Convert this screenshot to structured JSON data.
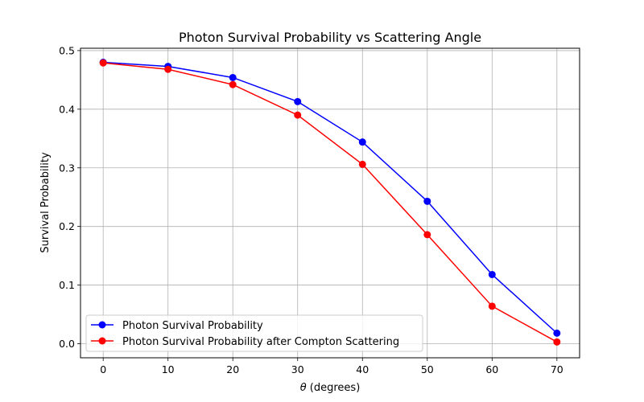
{
  "chart_data": {
    "type": "line",
    "title": "Photon Survival Probability vs Scattering Angle",
    "xlabel_prefix": "θ",
    "xlabel_suffix": " (degrees)",
    "ylabel": "Survival Probability",
    "x": [
      0,
      10,
      20,
      30,
      40,
      50,
      60,
      70
    ],
    "xlim": [
      -3.5,
      73.5
    ],
    "ylim": [
      -0.024,
      0.504
    ],
    "xticks": [
      0,
      10,
      20,
      30,
      40,
      50,
      60,
      70
    ],
    "yticks": [
      0.0,
      0.1,
      0.2,
      0.3,
      0.4,
      0.5
    ],
    "ytick_labels": [
      "0.0",
      "0.1",
      "0.2",
      "0.3",
      "0.4",
      "0.5"
    ],
    "grid": true,
    "legend_position": "lower-left",
    "series": [
      {
        "name": "Photon Survival Probability",
        "color": "#0000ff",
        "marker": "circle",
        "values": [
          0.48,
          0.473,
          0.454,
          0.413,
          0.344,
          0.243,
          0.118,
          0.018
        ]
      },
      {
        "name": "Photon Survival Probability after Compton Scattering",
        "color": "#ff0000",
        "marker": "circle",
        "values": [
          0.479,
          0.468,
          0.442,
          0.39,
          0.306,
          0.186,
          0.064,
          0.003
        ]
      }
    ]
  }
}
